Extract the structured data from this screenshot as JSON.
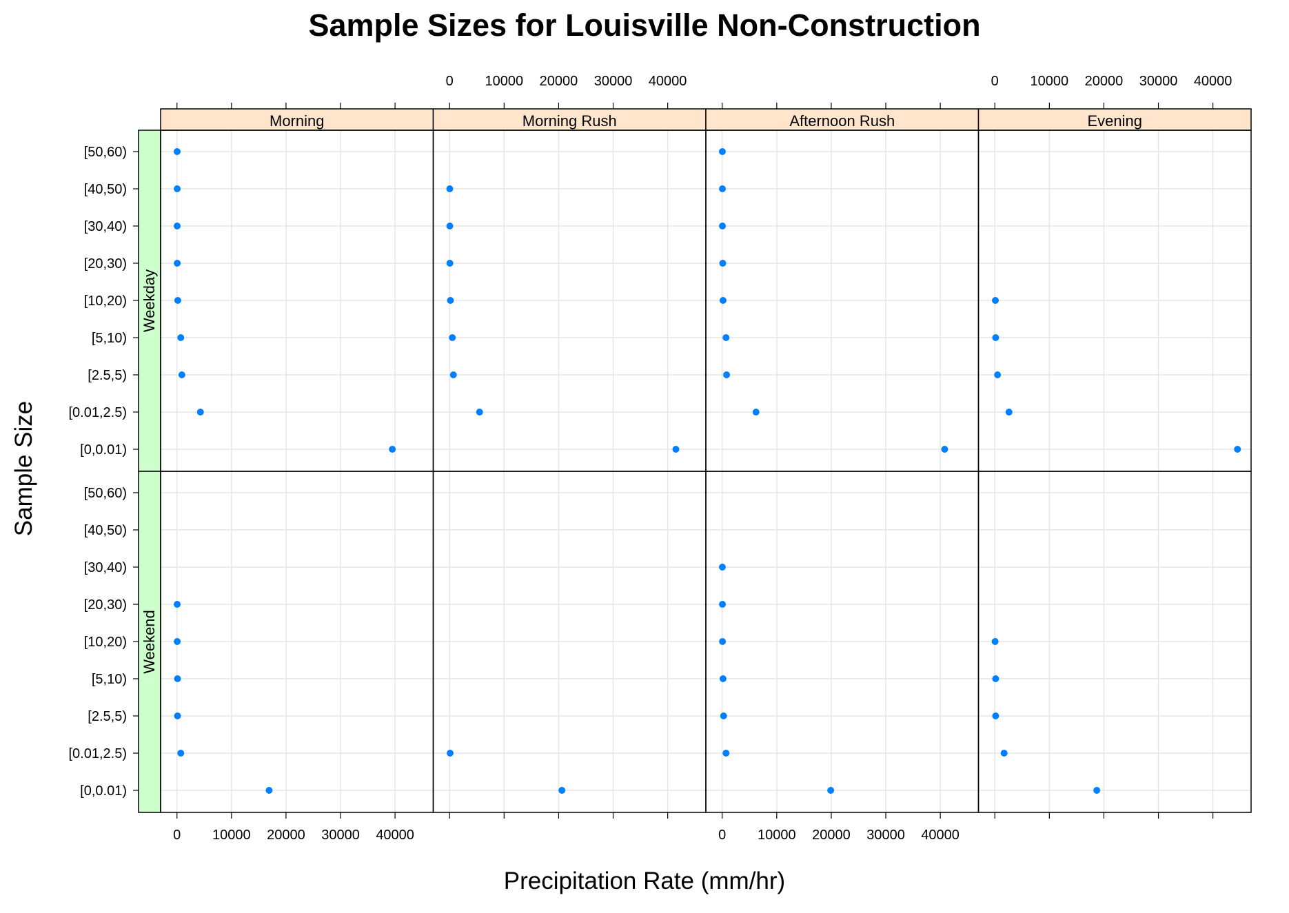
{
  "chart_data": {
    "type": "scatter",
    "title": "Sample Sizes for Louisville Non-Construction",
    "xlabel": "Precipitation Rate (mm/hr)",
    "ylabel": "Sample Size",
    "xlim": [
      -3000,
      47000
    ],
    "x_ticks": [
      0,
      10000,
      20000,
      30000,
      40000
    ],
    "x_tick_labels": [
      "0",
      "10000",
      "20000",
      "30000",
      "40000"
    ],
    "categories": [
      "[0,0.01)",
      "[0.01,2.5)",
      "[2.5,5)",
      "[5,10)",
      "[10,20)",
      "[20,30)",
      "[30,40)",
      "[40,50)",
      "[50,60)"
    ],
    "panel_columns": [
      "Morning",
      "Morning Rush",
      "Afternoon Rush",
      "Evening"
    ],
    "panel_rows": [
      "Weekday",
      "Weekend"
    ],
    "grid": true,
    "point_color": "#0080ff",
    "strip_color": "#ffe5cc",
    "condition_strip_color": "#ccffcc",
    "panels": [
      {
        "row": "Weekday",
        "column": "Morning",
        "values": [
          39500,
          4300,
          900,
          700,
          150,
          50,
          40,
          40,
          30
        ]
      },
      {
        "row": "Weekday",
        "column": "Morning Rush",
        "values": [
          41500,
          5500,
          700,
          500,
          150,
          50,
          40,
          30,
          null
        ]
      },
      {
        "row": "Weekday",
        "column": "Afternoon Rush",
        "values": [
          40800,
          6200,
          800,
          700,
          150,
          100,
          40,
          40,
          30
        ]
      },
      {
        "row": "Weekday",
        "column": "Evening",
        "values": [
          44500,
          2600,
          500,
          150,
          100,
          null,
          null,
          null,
          null
        ]
      },
      {
        "row": "Weekend",
        "column": "Morning",
        "values": [
          16900,
          700,
          100,
          100,
          50,
          40,
          null,
          null,
          null
        ]
      },
      {
        "row": "Weekend",
        "column": "Morning Rush",
        "values": [
          20600,
          100,
          null,
          null,
          null,
          null,
          null,
          null,
          null
        ]
      },
      {
        "row": "Weekend",
        "column": "Afternoon Rush",
        "values": [
          19900,
          700,
          250,
          150,
          50,
          40,
          30,
          null,
          null
        ]
      },
      {
        "row": "Weekend",
        "column": "Evening",
        "values": [
          18700,
          1700,
          150,
          150,
          50,
          null,
          null,
          null,
          null
        ]
      }
    ]
  }
}
